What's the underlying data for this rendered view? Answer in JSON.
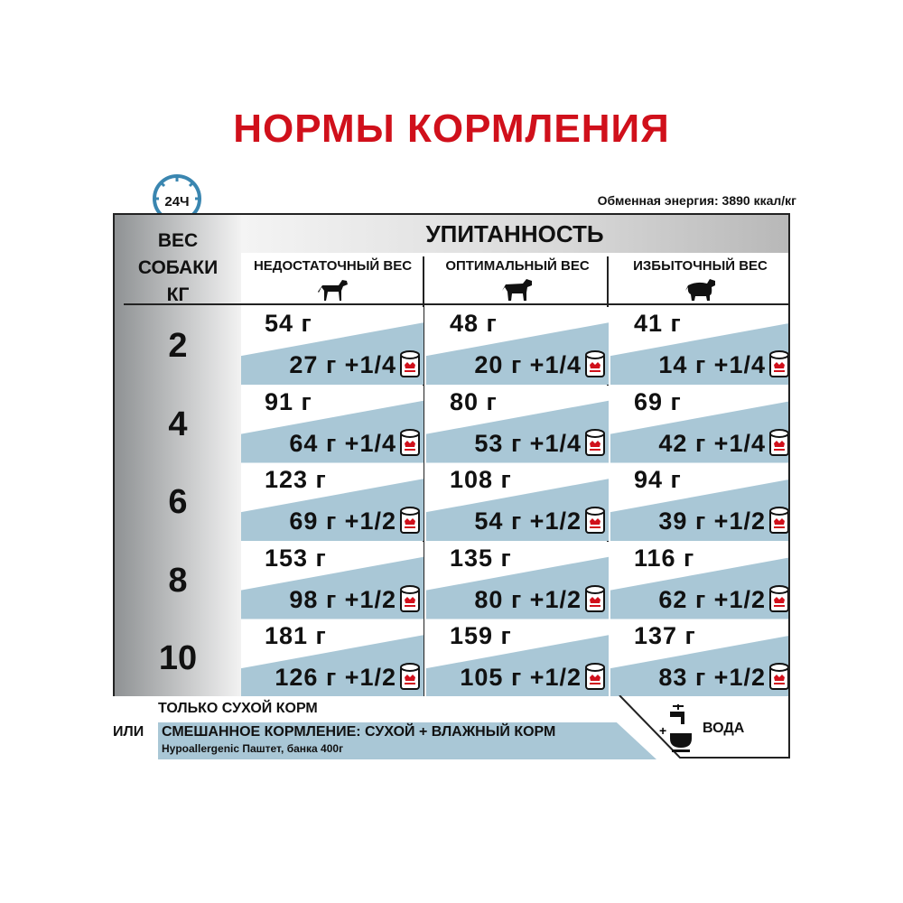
{
  "title": "НОРМЫ КОРМЛЕНИЯ",
  "clock_label": "24Ч",
  "energy": "Обменная энергия: 3890 ккал/кг",
  "header": {
    "weight_label_lines": [
      "ВЕС",
      "СОБАКИ",
      "КГ"
    ],
    "condition": "УПИТАННОСТЬ",
    "columns": [
      "НЕДОСТАТОЧНЫЙ ВЕС",
      "ОПТИМАЛЬНЫЙ ВЕС",
      "ИЗБЫТОЧНЫЙ ВЕС"
    ]
  },
  "rows": [
    {
      "weight": "2",
      "cells": [
        {
          "dry": "54 г",
          "wet": "27 г +1/4"
        },
        {
          "dry": "48 г",
          "wet": "20 г +1/4"
        },
        {
          "dry": "41 г",
          "wet": "14 г +1/4"
        }
      ]
    },
    {
      "weight": "4",
      "cells": [
        {
          "dry": "91 г",
          "wet": "64 г +1/4"
        },
        {
          "dry": "80 г",
          "wet": "53 г +1/4"
        },
        {
          "dry": "69 г",
          "wet": "42 г +1/4"
        }
      ]
    },
    {
      "weight": "6",
      "cells": [
        {
          "dry": "123 г",
          "wet": "69 г +1/2"
        },
        {
          "dry": "108 г",
          "wet": "54 г +1/2"
        },
        {
          "dry": "94 г",
          "wet": "39 г +1/2"
        }
      ]
    },
    {
      "weight": "8",
      "cells": [
        {
          "dry": "153 г",
          "wet": "98 г +1/2"
        },
        {
          "dry": "135 г",
          "wet": "80 г +1/2"
        },
        {
          "dry": "116 г",
          "wet": "62 г +1/2"
        }
      ]
    },
    {
      "weight": "10",
      "cells": [
        {
          "dry": "181 г",
          "wet": "126 г +1/2"
        },
        {
          "dry": "159 г",
          "wet": "105 г +1/2"
        },
        {
          "dry": "137 г",
          "wet": "83 г +1/2"
        }
      ]
    }
  ],
  "legend": {
    "dry_only": "ТОЛЬКО СУХОЙ КОРМ",
    "or": "ИЛИ",
    "mixed": "СМЕШАННОЕ КОРМЛЕНИЕ: СУХОЙ + ВЛАЖНЫЙ КОРМ",
    "mixed_product": "Hypoallergenic Паштет, банка 400г",
    "water": "ВОДА"
  },
  "colors": {
    "title": "#d0101b",
    "wet_band": "#a9c7d6",
    "clock": "#3a86b0"
  },
  "icons": [
    "clock-icon",
    "dog-thin-icon",
    "dog-optimal-icon",
    "dog-fat-icon",
    "can-icon",
    "water-tap-icon"
  ]
}
